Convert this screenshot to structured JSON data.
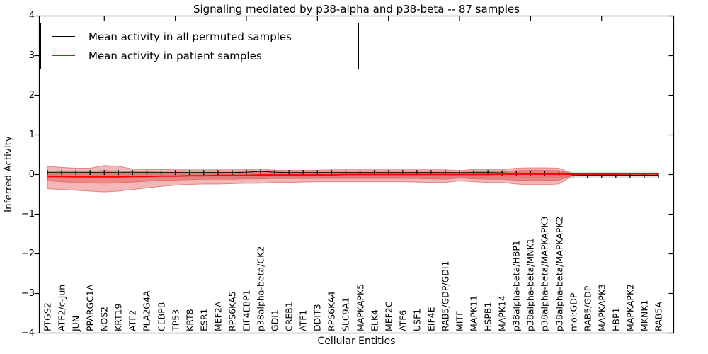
{
  "title": "Signaling mediated by p38-alpha and p38-beta -- 87 samples",
  "chart_data": {
    "type": "line",
    "title": "Signaling mediated by p38-alpha and p38-beta -- 87 samples",
    "xlabel": "Cellular Entities",
    "ylabel": "Inferred Activity",
    "ylim": [
      -4,
      4
    ],
    "grid": false,
    "legend_position": "upper left",
    "y_ticks": {
      "values": [
        4,
        3,
        2,
        1,
        0,
        -1,
        -2,
        -3,
        -4
      ],
      "labels": [
        "4",
        "3",
        "2",
        "1",
        "0",
        "−1",
        "−2",
        "−3",
        "−4"
      ]
    },
    "x_major_tick_every": 5,
    "categories": [
      "PTGS2",
      "ATF2/c-Jun",
      "JUN",
      "PPARGC1A",
      "NOS2",
      "KRT19",
      "ATF2",
      "PLA2G4A",
      "CEBPB",
      "TP53",
      "KRT8",
      "ESR1",
      "MEF2A",
      "RPS6KA5",
      "EIF4EBP1",
      "p38alpha-beta/CK2",
      "GDI1",
      "CREB1",
      "ATF1",
      "DDIT3",
      "RPS6KA4",
      "SLC9A1",
      "MAPKAPK5",
      "ELK4",
      "MEF2C",
      "ATF6",
      "USF1",
      "EIF4E",
      "RAB5/GDP/GDI1",
      "MITF",
      "MAPK11",
      "HSPB1",
      "MAPK14",
      "p38alpha-beta/HBP1",
      "p38alpha-beta/MNK1",
      "p38alpha-beta/MAPKAPK3",
      "p38alpha-beta/MAPKAPK2",
      "mol:GDP",
      "RAB5/GDP",
      "MAPKAPK3",
      "HBP1",
      "MAPKAPK2",
      "MKNK1",
      "RAB5A"
    ],
    "series": [
      {
        "name": "Mean activity in all permuted samples",
        "color": "#000000",
        "marker": "|",
        "line_width": 1,
        "values": [
          0.05,
          0.05,
          0.05,
          0.05,
          0.05,
          0.05,
          0.05,
          0.05,
          0.05,
          0.05,
          0.05,
          0.05,
          0.05,
          0.05,
          0.06,
          0.08,
          0.06,
          0.05,
          0.05,
          0.05,
          0.05,
          0.05,
          0.05,
          0.05,
          0.05,
          0.05,
          0.05,
          0.05,
          0.05,
          0.05,
          0.05,
          0.05,
          0.04,
          0.03,
          0.03,
          0.03,
          0.02,
          -0.01,
          -0.02,
          -0.02,
          -0.02,
          -0.02,
          -0.02,
          -0.02
        ]
      },
      {
        "name": "Mean activity in patient samples",
        "color": "#ff0000",
        "marker": "none",
        "line_width": 1.8,
        "values": [
          -0.05,
          -0.05,
          -0.06,
          -0.06,
          -0.06,
          -0.06,
          -0.05,
          -0.05,
          -0.04,
          -0.04,
          -0.03,
          -0.03,
          -0.02,
          -0.02,
          -0.02,
          -0.01,
          -0.01,
          -0.01,
          -0.01,
          -0.01,
          -0.01,
          0,
          0,
          0,
          0,
          0,
          0,
          0,
          0,
          0,
          0,
          0,
          0.01,
          0.01,
          0.01,
          0.01,
          0.01,
          0.01,
          0.01,
          0.01,
          0.01,
          0.02,
          0.02,
          0.02
        ]
      }
    ],
    "bands": [
      {
        "name": "permuted-samples-std-band",
        "color": "#e3e3e3",
        "opacity": 1,
        "stroke": "none",
        "upper": 0.07,
        "lower": -0.09
      },
      {
        "name": "patient-samples-outer-band",
        "color": "#e03030",
        "opacity": 0.35,
        "stroke": "#c83232",
        "upper": [
          0.21,
          0.18,
          0.16,
          0.16,
          0.23,
          0.21,
          0.14,
          0.13,
          0.13,
          0.12,
          0.12,
          0.12,
          0.12,
          0.12,
          0.12,
          0.14,
          0.11,
          0.11,
          0.11,
          0.11,
          0.12,
          0.12,
          0.12,
          0.12,
          0.12,
          0.12,
          0.12,
          0.12,
          0.12,
          0.1,
          0.13,
          0.13,
          0.13,
          0.16,
          0.17,
          0.17,
          0.16,
          0.02,
          0.01,
          0.01,
          0.01,
          0.01,
          0.01,
          0.01
        ],
        "lower": [
          -0.36,
          -0.38,
          -0.4,
          -0.42,
          -0.44,
          -0.42,
          -0.38,
          -0.34,
          -0.3,
          -0.27,
          -0.25,
          -0.24,
          -0.24,
          -0.23,
          -0.22,
          -0.22,
          -0.2,
          -0.2,
          -0.19,
          -0.18,
          -0.18,
          -0.18,
          -0.18,
          -0.18,
          -0.18,
          -0.18,
          -0.19,
          -0.2,
          -0.2,
          -0.16,
          -0.18,
          -0.2,
          -0.2,
          -0.24,
          -0.26,
          -0.26,
          -0.24,
          -0.02,
          -0.01,
          -0.01,
          -0.01,
          -0.01,
          -0.01,
          -0.01
        ]
      },
      {
        "name": "patient-samples-inner-band",
        "color": "#e03030",
        "opacity": 0.35,
        "stroke": "#c84040",
        "upper": [
          0.09,
          0.08,
          0.08,
          0.08,
          0.1,
          0.09,
          0.07,
          0.07,
          0.06,
          0.06,
          0.06,
          0.06,
          0.06,
          0.06,
          0.06,
          0.08,
          0.06,
          0.06,
          0.06,
          0.06,
          0.06,
          0.06,
          0.06,
          0.06,
          0.06,
          0.06,
          0.06,
          0.06,
          0.06,
          0.05,
          0.07,
          0.07,
          0.07,
          0.1,
          0.11,
          0.11,
          0.1,
          0.01,
          0.01,
          0.01,
          0.01,
          0.01,
          0.01,
          0.01
        ],
        "lower": [
          -0.16,
          -0.18,
          -0.2,
          -0.21,
          -0.22,
          -0.21,
          -0.19,
          -0.17,
          -0.15,
          -0.14,
          -0.13,
          -0.12,
          -0.12,
          -0.12,
          -0.11,
          -0.11,
          -0.1,
          -0.1,
          -0.1,
          -0.1,
          -0.1,
          -0.1,
          -0.1,
          -0.1,
          -0.1,
          -0.1,
          -0.1,
          -0.11,
          -0.12,
          -0.09,
          -0.11,
          -0.12,
          -0.12,
          -0.14,
          -0.15,
          -0.15,
          -0.14,
          -0.01,
          -0.01,
          -0.01,
          -0.01,
          -0.01,
          -0.01,
          -0.01
        ]
      }
    ]
  }
}
